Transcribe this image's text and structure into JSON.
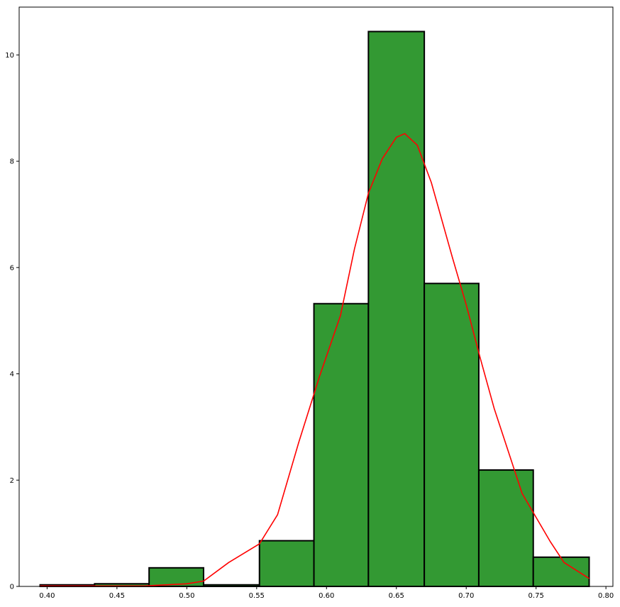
{
  "chart_data": {
    "type": "bar",
    "title": "",
    "xlabel": "",
    "ylabel": "",
    "xlim": [
      0.38,
      0.805
    ],
    "ylim": [
      0,
      10.9
    ],
    "grid": false,
    "x_ticks": [
      0.4,
      0.45,
      0.5,
      0.55,
      0.6,
      0.65,
      0.7,
      0.75,
      0.8
    ],
    "x_tick_labels": [
      "0.40",
      "0.45",
      "0.50",
      "0.55",
      "0.60",
      "0.65",
      "0.70",
      "0.75",
      "0.80"
    ],
    "y_ticks": [
      0,
      2,
      4,
      6,
      8,
      10
    ],
    "y_tick_labels": [
      "0",
      "2",
      "4",
      "6",
      "8",
      "10"
    ],
    "bins": [
      {
        "x0": 0.395,
        "x1": 0.434,
        "value": 0.03
      },
      {
        "x0": 0.434,
        "x1": 0.473,
        "value": 0.05
      },
      {
        "x0": 0.473,
        "x1": 0.512,
        "value": 0.35
      },
      {
        "x0": 0.512,
        "x1": 0.552,
        "value": 0.03
      },
      {
        "x0": 0.552,
        "x1": 0.591,
        "value": 0.86
      },
      {
        "x0": 0.591,
        "x1": 0.63,
        "value": 5.32
      },
      {
        "x0": 0.63,
        "x1": 0.67,
        "value": 10.44
      },
      {
        "x0": 0.67,
        "x1": 0.709,
        "value": 5.7
      },
      {
        "x0": 0.709,
        "x1": 0.748,
        "value": 2.19
      },
      {
        "x0": 0.748,
        "x1": 0.788,
        "value": 0.55
      }
    ],
    "density_curve": {
      "x": [
        0.395,
        0.43,
        0.47,
        0.5,
        0.512,
        0.53,
        0.552,
        0.565,
        0.58,
        0.595,
        0.61,
        0.62,
        0.63,
        0.64,
        0.65,
        0.656,
        0.665,
        0.675,
        0.69,
        0.7,
        0.71,
        0.72,
        0.74,
        0.76,
        0.77,
        0.788
      ],
      "y": [
        0.01,
        0.01,
        0.01,
        0.05,
        0.1,
        0.45,
        0.8,
        1.35,
        2.7,
        3.95,
        5.1,
        6.35,
        7.4,
        8.05,
        8.45,
        8.52,
        8.3,
        7.6,
        6.2,
        5.3,
        4.3,
        3.35,
        1.75,
        0.85,
        0.45,
        0.15
      ]
    },
    "colors": {
      "bar_fill": "#339933",
      "bar_edge": "#000000",
      "curve": "#ff0000"
    }
  }
}
